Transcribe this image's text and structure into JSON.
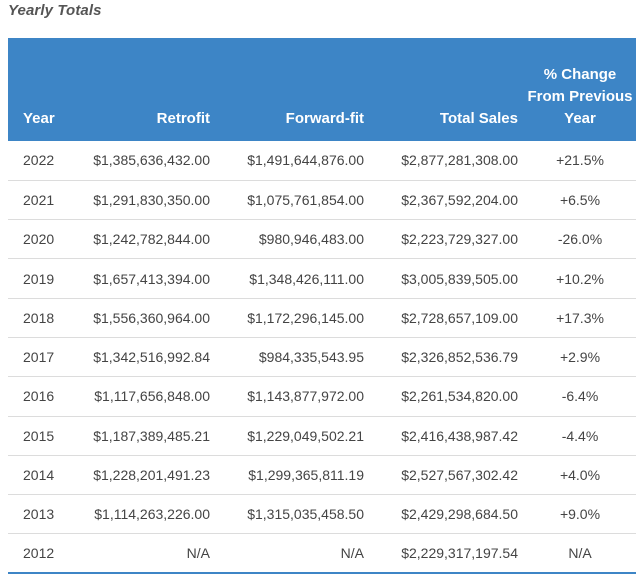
{
  "title": "Yearly Totals",
  "table": {
    "headers": {
      "year": "Year",
      "retrofit": "Retrofit",
      "forward_fit": "Forward-fit",
      "total_sales": "Total Sales",
      "pct_change": "% Change From Previous Year"
    },
    "rows": [
      {
        "year": "2022",
        "retrofit": "$1,385,636,432.00",
        "forward_fit": "$1,491,644,876.00",
        "total_sales": "$2,877,281,308.00",
        "pct_change": "+21.5%"
      },
      {
        "year": "2021",
        "retrofit": "$1,291,830,350.00",
        "forward_fit": "$1,075,761,854.00",
        "total_sales": "$2,367,592,204.00",
        "pct_change": "+6.5%"
      },
      {
        "year": "2020",
        "retrofit": "$1,242,782,844.00",
        "forward_fit": "$980,946,483.00",
        "total_sales": "$2,223,729,327.00",
        "pct_change": "-26.0%"
      },
      {
        "year": "2019",
        "retrofit": "$1,657,413,394.00",
        "forward_fit": "$1,348,426,111.00",
        "total_sales": "$3,005,839,505.00",
        "pct_change": "+10.2%"
      },
      {
        "year": "2018",
        "retrofit": "$1,556,360,964.00",
        "forward_fit": "$1,172,296,145.00",
        "total_sales": "$2,728,657,109.00",
        "pct_change": "+17.3%"
      },
      {
        "year": "2017",
        "retrofit": "$1,342,516,992.84",
        "forward_fit": "$984,335,543.95",
        "total_sales": "$2,326,852,536.79",
        "pct_change": "+2.9%"
      },
      {
        "year": "2016",
        "retrofit": "$1,117,656,848.00",
        "forward_fit": "$1,143,877,972.00",
        "total_sales": "$2,261,534,820.00",
        "pct_change": "-6.4%"
      },
      {
        "year": "2015",
        "retrofit": "$1,187,389,485.21",
        "forward_fit": "$1,229,049,502.21",
        "total_sales": "$2,416,438,987.42",
        "pct_change": "-4.4%"
      },
      {
        "year": "2014",
        "retrofit": "$1,228,201,491.23",
        "forward_fit": "$1,299,365,811.19",
        "total_sales": "$2,527,567,302.42",
        "pct_change": "+4.0%"
      },
      {
        "year": "2013",
        "retrofit": "$1,114,263,226.00",
        "forward_fit": "$1,315,035,458.50",
        "total_sales": "$2,429,298,684.50",
        "pct_change": "+9.0%"
      },
      {
        "year": "2012",
        "retrofit": "N/A",
        "forward_fit": "N/A",
        "total_sales": "$2,229,317,197.54",
        "pct_change": "N/A"
      }
    ]
  },
  "colors": {
    "header_background": "#3d85c6",
    "header_text": "#ffffff",
    "row_divider": "#dcdcdc"
  }
}
